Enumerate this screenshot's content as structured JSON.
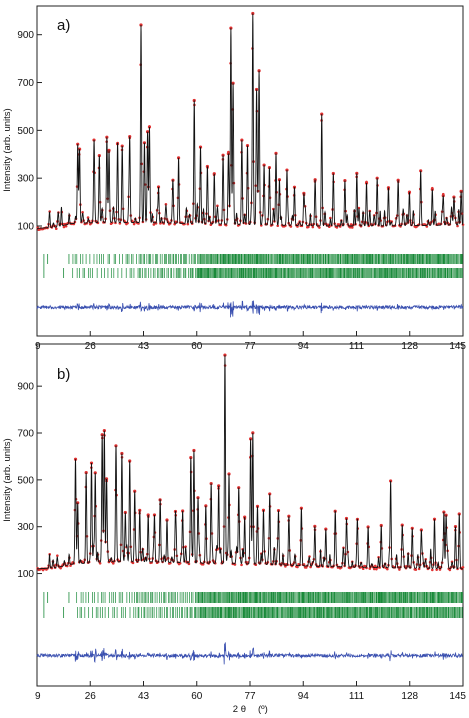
{
  "shared": {
    "ylabel": "Intensity (arb. units)",
    "xlabel_main": "2 θ",
    "xlabel_unit": "(º)",
    "x_ticks": [
      9,
      26,
      43,
      60,
      77,
      94,
      111,
      128,
      145
    ],
    "y_ticks": [
      100,
      300,
      500,
      700,
      900
    ],
    "colors": {
      "observed": "#e03030",
      "calculated": "#111111",
      "reflections": "#1a8a3a",
      "difference": "#3a50b0",
      "axes": "#222222"
    }
  },
  "chart_data": [
    {
      "type": "line",
      "panel_label": "a)",
      "xlabel": "2 θ (º)",
      "ylabel": "Intensity (arb. units)",
      "xlim": [
        9,
        145
      ],
      "ylim": [
        -360,
        1020
      ],
      "y_ticks": [
        100,
        300,
        500,
        700,
        900
      ],
      "background": [
        [
          9,
          90
        ],
        [
          15,
          95
        ],
        [
          20,
          110
        ],
        [
          30,
          115
        ],
        [
          40,
          115
        ],
        [
          60,
          110
        ],
        [
          80,
          105
        ],
        [
          100,
          100
        ],
        [
          120,
          100
        ],
        [
          145,
          105
        ]
      ],
      "peaks": [
        [
          22.0,
          330
        ],
        [
          22.6,
          260
        ],
        [
          27.2,
          300
        ],
        [
          28.9,
          280
        ],
        [
          31.3,
          340
        ],
        [
          32.0,
          300
        ],
        [
          34.7,
          270
        ],
        [
          36.2,
          280
        ],
        [
          38.6,
          350
        ],
        [
          42.2,
          780
        ],
        [
          43.3,
          320
        ],
        [
          44.3,
          380
        ],
        [
          44.9,
          400
        ],
        [
          47.8,
          150
        ],
        [
          52.4,
          140
        ],
        [
          54.2,
          200
        ],
        [
          59.2,
          480
        ],
        [
          61.2,
          320
        ],
        [
          63.4,
          240
        ],
        [
          65.6,
          210
        ],
        [
          68.4,
          260
        ],
        [
          70.1,
          290
        ],
        [
          70.9,
          820
        ],
        [
          71.6,
          590
        ],
        [
          74.4,
          340
        ],
        [
          76.2,
          330
        ],
        [
          77.9,
          880
        ],
        [
          79.1,
          560
        ],
        [
          79.9,
          640
        ],
        [
          81.5,
          250
        ],
        [
          83.2,
          240
        ],
        [
          85.3,
          300
        ],
        [
          86.4,
          190
        ],
        [
          88.8,
          230
        ],
        [
          91.2,
          160
        ],
        [
          94.2,
          130
        ],
        [
          97.8,
          170
        ],
        [
          99.9,
          440
        ],
        [
          103.6,
          200
        ],
        [
          107.3,
          190
        ],
        [
          111.1,
          220
        ],
        [
          114.2,
          180
        ],
        [
          117.6,
          200
        ],
        [
          121.2,
          160
        ],
        [
          124.3,
          190
        ],
        [
          127.9,
          140
        ],
        [
          131.5,
          160
        ],
        [
          135.2,
          150
        ],
        [
          138.7,
          120
        ],
        [
          142.1,
          110
        ],
        [
          144.4,
          140
        ]
      ],
      "reflection_rows": 3,
      "difference_baseline": -240
    },
    {
      "type": "line",
      "panel_label": "b)",
      "xlabel": "2 θ (º)",
      "ylabel": "Intensity (arb. units)",
      "xlim": [
        9,
        145
      ],
      "ylim": [
        -380,
        1080
      ],
      "y_ticks": [
        100,
        300,
        500,
        700,
        900
      ],
      "background": [
        [
          9,
          120
        ],
        [
          15,
          125
        ],
        [
          20,
          140
        ],
        [
          30,
          150
        ],
        [
          45,
          150
        ],
        [
          60,
          145
        ],
        [
          80,
          140
        ],
        [
          100,
          130
        ],
        [
          120,
          125
        ],
        [
          145,
          120
        ]
      ],
      "peaks": [
        [
          21.3,
          380
        ],
        [
          22.0,
          260
        ],
        [
          24.7,
          320
        ],
        [
          26.4,
          420
        ],
        [
          27.6,
          380
        ],
        [
          29.8,
          520
        ],
        [
          30.5,
          560
        ],
        [
          31.2,
          310
        ],
        [
          34.2,
          460
        ],
        [
          36.1,
          460
        ],
        [
          37.2,
          210
        ],
        [
          38.6,
          430
        ],
        [
          40.2,
          300
        ],
        [
          41.8,
          220
        ],
        [
          44.5,
          200
        ],
        [
          46.5,
          200
        ],
        [
          48.3,
          230
        ],
        [
          50.5,
          180
        ],
        [
          53.2,
          210
        ],
        [
          55.5,
          220
        ],
        [
          58.1,
          430
        ],
        [
          59.1,
          480
        ],
        [
          60.4,
          270
        ],
        [
          62.9,
          220
        ],
        [
          64.6,
          340
        ],
        [
          67.0,
          330
        ],
        [
          69.0,
          890
        ],
        [
          70.3,
          380
        ],
        [
          73.4,
          310
        ],
        [
          75.3,
          200
        ],
        [
          77.2,
          520
        ],
        [
          77.9,
          560
        ],
        [
          79.4,
          240
        ],
        [
          81.3,
          230
        ],
        [
          83.3,
          300
        ],
        [
          86.1,
          230
        ],
        [
          89.4,
          200
        ],
        [
          93.4,
          180
        ],
        [
          97.7,
          170
        ],
        [
          101.2,
          160
        ],
        [
          104.2,
          190
        ],
        [
          107.8,
          200
        ],
        [
          111.3,
          170
        ],
        [
          114.7,
          160
        ],
        [
          118.9,
          180
        ],
        [
          121.9,
          370
        ],
        [
          125.6,
          180
        ],
        [
          128.8,
          170
        ],
        [
          131.7,
          160
        ],
        [
          135.9,
          210
        ],
        [
          138.9,
          240
        ],
        [
          139.6,
          220
        ],
        [
          142.6,
          180
        ],
        [
          143.8,
          200
        ]
      ],
      "reflection_rows": 3,
      "difference_baseline": -250
    }
  ]
}
